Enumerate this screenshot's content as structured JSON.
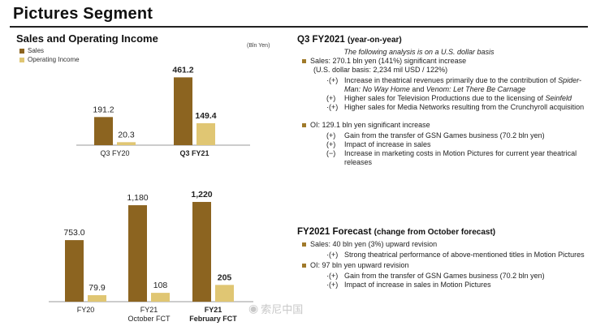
{
  "page": {
    "title": "Pictures Segment",
    "left_title": "Sales and Operating Income",
    "unit": "(Bln Yen)",
    "legend": [
      {
        "label": "Sales",
        "color": "#8c6420"
      },
      {
        "label": "Operating Income",
        "color": "#e0c673"
      }
    ],
    "watermark": "索尼中国"
  },
  "chart_data": [
    {
      "type": "bar",
      "categories": [
        "Q3 FY20",
        "Q3 FY21"
      ],
      "series": [
        {
          "name": "Sales",
          "values": [
            191.2,
            461.2
          ],
          "labels": [
            "191.2",
            "461.2"
          ]
        },
        {
          "name": "Operating Income",
          "values": [
            20.3,
            149.4
          ],
          "labels": [
            "20.3",
            "149.4"
          ]
        }
      ],
      "bold_categories": [
        false,
        true
      ]
    },
    {
      "type": "bar",
      "categories": [
        "FY20",
        "FY21 October FCT",
        "FY21 February FCT"
      ],
      "category_lines": [
        [
          "FY20"
        ],
        [
          "FY21",
          "October FCT"
        ],
        [
          "FY21",
          "February FCT"
        ]
      ],
      "series": [
        {
          "name": "Sales",
          "values": [
            753.0,
            1180,
            1220
          ],
          "labels": [
            "753.0",
            "1,180",
            "1,220"
          ]
        },
        {
          "name": "Operating Income",
          "values": [
            79.9,
            108,
            205
          ],
          "labels": [
            "79.9",
            "108",
            "205"
          ]
        }
      ],
      "bold_categories": [
        false,
        false,
        true
      ]
    }
  ],
  "q3": {
    "heading": "Q3 FY2021",
    "heading_suffix": "(year-on-year)",
    "note": "The following analysis is on a U.S. dollar basis",
    "sales_line": "Sales: 270.1 bln yen (141%) significant increase",
    "usd_line": "(U.S. dollar basis: 2,234 mil USD / 122%)",
    "items": [
      {
        "mark": "·(+)",
        "pre": "Increase in theatrical revenues primarily due to the contribution of ",
        "it1": "Spider-Man: No Way Home",
        "mid": " and ",
        "it2": "Venom: Let There Be Carnage"
      },
      {
        "mark": "(+)",
        "pre": "Higher sales for Television Productions due to the licensing of ",
        "it1": "Seinfeld"
      },
      {
        "mark": "·(+)",
        "pre": "Higher sales for Media Networks resulting from the Crunchyroll acquisition"
      }
    ],
    "oi_line": "OI: 129.1 bln yen significant increase",
    "oi_items": [
      {
        "mark": "(+)",
        "text": "Gain from the transfer of GSN Games business (70.2 bln yen)"
      },
      {
        "mark": "(+)",
        "text": "Impact of increase in sales"
      },
      {
        "mark": "(−)",
        "text": "Increase in marketing costs in Motion Pictures for current year theatrical releases"
      }
    ]
  },
  "forecast": {
    "heading": "FY2021 Forecast",
    "heading_suffix": "(change from October forecast)",
    "sales_line": "Sales: 40 bln yen (3%) upward revision",
    "sales_items": [
      {
        "mark": "·(+)",
        "text": "Strong theatrical performance of above-mentioned titles in Motion Pictures"
      }
    ],
    "oi_line": "OI: 97 bln yen upward revision",
    "oi_items": [
      {
        "mark": "·(+)",
        "text": "Gain from the transfer of GSN Games business (70.2 bln yen)"
      },
      {
        "mark": "·(+)",
        "text": "Impact of increase in sales in Motion Pictures"
      }
    ]
  }
}
